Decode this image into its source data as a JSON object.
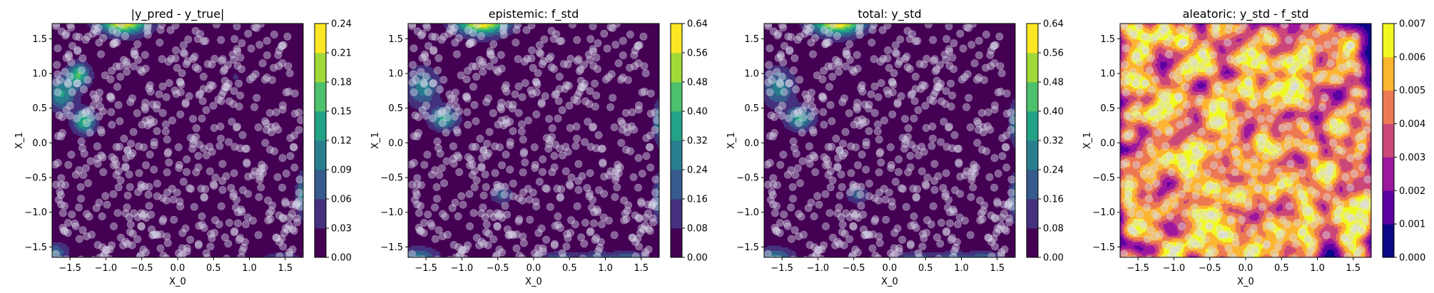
{
  "chart_data": [
    {
      "type": "heatmap",
      "title": "|y_pred - y_true|",
      "xlabel": "X_0",
      "ylabel": "X_1",
      "xlim": [
        -1.75,
        1.75
      ],
      "ylim": [
        -1.65,
        1.72
      ],
      "xticks": [
        -1.5,
        -1.0,
        -0.5,
        0.0,
        0.5,
        1.0,
        1.5
      ],
      "xtick_labels": [
        "−1.5",
        "−1.0",
        "−0.5",
        "0.0",
        "0.5",
        "1.0",
        "1.5"
      ],
      "yticks": [
        -1.5,
        -1.0,
        -0.5,
        0.0,
        0.5,
        1.0,
        1.5
      ],
      "ytick_labels": [
        "−1.5",
        "−1.0",
        "−0.5",
        "0.0",
        "0.5",
        "1.0",
        "1.5"
      ],
      "colormap": "viridis",
      "colorbar_levels": [
        0.0,
        0.03,
        0.06,
        0.09,
        0.12,
        0.15,
        0.18,
        0.21,
        0.24
      ],
      "colorbar_labels": [
        "0.00",
        "0.03",
        "0.06",
        "0.09",
        "0.12",
        "0.15",
        "0.18",
        "0.21",
        "0.24"
      ],
      "hotspots": [
        {
          "x": -1.38,
          "y": 0.98,
          "sx": 0.11,
          "sy": 0.12,
          "amp": 0.15
        },
        {
          "x": -1.3,
          "y": 0.31,
          "sx": 0.11,
          "sy": 0.12,
          "amp": 0.15
        },
        {
          "x": -1.62,
          "y": 0.7,
          "sx": 0.14,
          "sy": 0.16,
          "amp": 0.12
        },
        {
          "x": -0.75,
          "y": 1.78,
          "sx": 0.24,
          "sy": 0.14,
          "amp": 0.26
        },
        {
          "x": 1.75,
          "y": -0.75,
          "sx": 0.07,
          "sy": 0.22,
          "amp": 0.1
        },
        {
          "x": -1.73,
          "y": -1.58,
          "sx": 0.14,
          "sy": 0.1,
          "amp": 0.09
        },
        {
          "x": 1.45,
          "y": -1.75,
          "sx": 0.22,
          "sy": 0.12,
          "amp": 0.07
        },
        {
          "x": 0.8,
          "y": 0.95,
          "sx": 0.04,
          "sy": 0.04,
          "amp": 0.04
        }
      ]
    },
    {
      "type": "heatmap",
      "title": "epistemic: f_std",
      "xlabel": "X_0",
      "ylabel": "X_1",
      "xlim": [
        -1.75,
        1.75
      ],
      "ylim": [
        -1.65,
        1.72
      ],
      "xticks": [
        -1.5,
        -1.0,
        -0.5,
        0.0,
        0.5,
        1.0,
        1.5
      ],
      "xtick_labels": [
        "−1.5",
        "−1.0",
        "−0.5",
        "0.0",
        "0.5",
        "1.0",
        "1.5"
      ],
      "yticks": [
        -1.5,
        -1.0,
        -0.5,
        0.0,
        0.5,
        1.0,
        1.5
      ],
      "ytick_labels": [
        "−1.5",
        "−1.0",
        "−0.5",
        "0.0",
        "0.5",
        "1.0",
        "1.5"
      ],
      "colormap": "viridis",
      "colorbar_levels": [
        0.0,
        0.08,
        0.16,
        0.24,
        0.32,
        0.4,
        0.48,
        0.56,
        0.64
      ],
      "colorbar_labels": [
        "0.00",
        "0.08",
        "0.16",
        "0.24",
        "0.32",
        "0.40",
        "0.48",
        "0.56",
        "0.64"
      ],
      "hotspots": [
        {
          "x": -0.72,
          "y": 1.78,
          "sx": 0.26,
          "sy": 0.15,
          "amp": 0.7
        },
        {
          "x": -1.55,
          "y": 0.8,
          "sx": 0.16,
          "sy": 0.2,
          "amp": 0.28
        },
        {
          "x": -1.25,
          "y": 0.35,
          "sx": 0.14,
          "sy": 0.12,
          "amp": 0.33
        },
        {
          "x": -0.45,
          "y": -0.75,
          "sx": 0.11,
          "sy": 0.09,
          "amp": 0.19
        },
        {
          "x": 1.78,
          "y": 0.3,
          "sx": 0.08,
          "sy": 0.22,
          "amp": 0.3
        },
        {
          "x": 1.78,
          "y": -0.8,
          "sx": 0.08,
          "sy": 0.25,
          "amp": 0.27
        },
        {
          "x": -1.6,
          "y": -1.7,
          "sx": 0.2,
          "sy": 0.13,
          "amp": 0.3
        },
        {
          "x": 0.35,
          "y": -1.72,
          "sx": 0.2,
          "sy": 0.1,
          "amp": 0.27
        },
        {
          "x": 0.85,
          "y": -1.72,
          "sx": 0.15,
          "sy": 0.1,
          "amp": 0.25
        },
        {
          "x": 1.3,
          "y": -1.72,
          "sx": 0.2,
          "sy": 0.1,
          "amp": 0.3
        }
      ]
    },
    {
      "type": "heatmap",
      "title": "total: y_std",
      "xlabel": "X_0",
      "ylabel": "X_1",
      "xlim": [
        -1.75,
        1.75
      ],
      "ylim": [
        -1.65,
        1.72
      ],
      "xticks": [
        -1.5,
        -1.0,
        -0.5,
        0.0,
        0.5,
        1.0,
        1.5
      ],
      "xtick_labels": [
        "−1.5",
        "−1.0",
        "−0.5",
        "0.0",
        "0.5",
        "1.0",
        "1.5"
      ],
      "yticks": [
        -1.5,
        -1.0,
        -0.5,
        0.0,
        0.5,
        1.0,
        1.5
      ],
      "ytick_labels": [
        "−1.5",
        "−1.0",
        "−0.5",
        "0.0",
        "0.5",
        "1.0",
        "1.5"
      ],
      "colormap": "viridis",
      "colorbar_levels": [
        0.0,
        0.08,
        0.16,
        0.24,
        0.32,
        0.4,
        0.48,
        0.56,
        0.64
      ],
      "colorbar_labels": [
        "0.00",
        "0.08",
        "0.16",
        "0.24",
        "0.32",
        "0.40",
        "0.48",
        "0.56",
        "0.64"
      ],
      "hotspots": [
        {
          "x": -0.72,
          "y": 1.78,
          "sx": 0.26,
          "sy": 0.15,
          "amp": 0.7
        },
        {
          "x": -1.55,
          "y": 0.8,
          "sx": 0.16,
          "sy": 0.2,
          "amp": 0.28
        },
        {
          "x": -1.25,
          "y": 0.35,
          "sx": 0.14,
          "sy": 0.12,
          "amp": 0.33
        },
        {
          "x": -0.45,
          "y": -0.75,
          "sx": 0.11,
          "sy": 0.09,
          "amp": 0.19
        },
        {
          "x": 1.78,
          "y": 0.3,
          "sx": 0.08,
          "sy": 0.22,
          "amp": 0.3
        },
        {
          "x": 1.78,
          "y": -0.8,
          "sx": 0.08,
          "sy": 0.25,
          "amp": 0.27
        },
        {
          "x": -1.6,
          "y": -1.7,
          "sx": 0.2,
          "sy": 0.13,
          "amp": 0.3
        },
        {
          "x": 0.35,
          "y": -1.72,
          "sx": 0.2,
          "sy": 0.1,
          "amp": 0.27
        },
        {
          "x": 0.85,
          "y": -1.72,
          "sx": 0.15,
          "sy": 0.1,
          "amp": 0.25
        },
        {
          "x": 1.3,
          "y": -1.72,
          "sx": 0.2,
          "sy": 0.1,
          "amp": 0.3
        }
      ]
    },
    {
      "type": "heatmap",
      "title": "aleatoric: y_std - f_std",
      "xlabel": "X_0",
      "ylabel": "X_1",
      "xlim": [
        -1.75,
        1.75
      ],
      "ylim": [
        -1.65,
        1.72
      ],
      "xticks": [
        -1.5,
        -1.0,
        -0.5,
        0.0,
        0.5,
        1.0,
        1.5
      ],
      "xtick_labels": [
        "−1.5",
        "−1.0",
        "−0.5",
        "0.0",
        "0.5",
        "1.0",
        "1.5"
      ],
      "yticks": [
        -1.5,
        -1.0,
        -0.5,
        0.0,
        0.5,
        1.0,
        1.5
      ],
      "ytick_labels": [
        "−1.5",
        "−1.0",
        "−0.5",
        "0.0",
        "0.5",
        "1.0",
        "1.5"
      ],
      "colormap": "plasma",
      "colorbar_levels": [
        0.0,
        0.001,
        0.002,
        0.003,
        0.004,
        0.005,
        0.006,
        0.007
      ],
      "colorbar_labels": [
        "0.000",
        "0.001",
        "0.002",
        "0.003",
        "0.004",
        "0.005",
        "0.006",
        "0.007"
      ],
      "data_density_field": true
    }
  ],
  "scatter_points": {
    "count": 600,
    "seed": 7,
    "range": [
      -1.72,
      1.72
    ],
    "color": "#d8d8e8",
    "opacity": 0.45
  },
  "palettes": {
    "viridis": [
      "#440154",
      "#482878",
      "#3e4989",
      "#31688e",
      "#26828e",
      "#1f9e89",
      "#35b779",
      "#6ece58",
      "#b5de2b",
      "#fde725"
    ],
    "plasma": [
      "#0d0887",
      "#46039f",
      "#7201a8",
      "#9c179e",
      "#bd3786",
      "#d8576b",
      "#ed7953",
      "#fb9f3a",
      "#fdca26",
      "#f0f921"
    ]
  }
}
